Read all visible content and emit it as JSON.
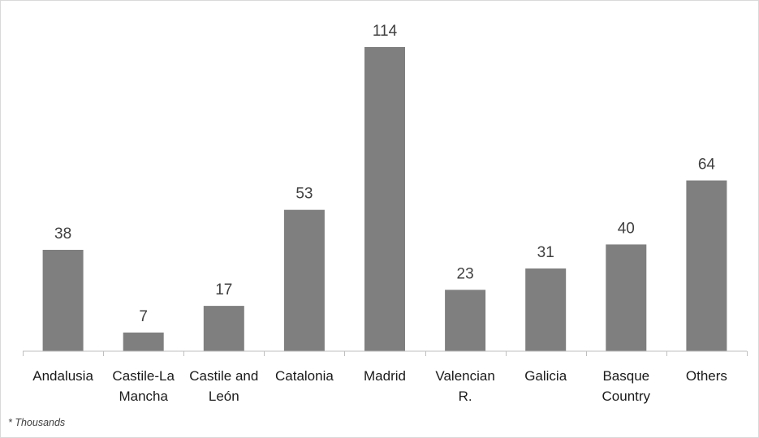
{
  "chart_data": {
    "type": "bar",
    "categories": [
      "Andalusia",
      "Castile-La Mancha",
      "Castile and León",
      "Catalonia",
      "Madrid",
      "Valencian R.",
      "Galicia",
      "Basque Country",
      "Others"
    ],
    "category_lines": [
      [
        "Andalusia"
      ],
      [
        "Castile-La",
        "Mancha"
      ],
      [
        "Castile and",
        "León"
      ],
      [
        "Catalonia"
      ],
      [
        "Madrid"
      ],
      [
        "Valencian",
        "R."
      ],
      [
        "Galicia"
      ],
      [
        "Basque",
        "Country"
      ],
      [
        "Others"
      ]
    ],
    "values": [
      38,
      7,
      17,
      53,
      114,
      23,
      31,
      40,
      64
    ],
    "ylim": [
      0,
      120
    ],
    "grid": false,
    "legend": "none",
    "data_labels": true,
    "note": "* Thousands",
    "colors": {
      "bar": "#7f7f7f",
      "axis": "#bfbfbf",
      "border": "#d9d9d9",
      "label": "#404040"
    }
  }
}
